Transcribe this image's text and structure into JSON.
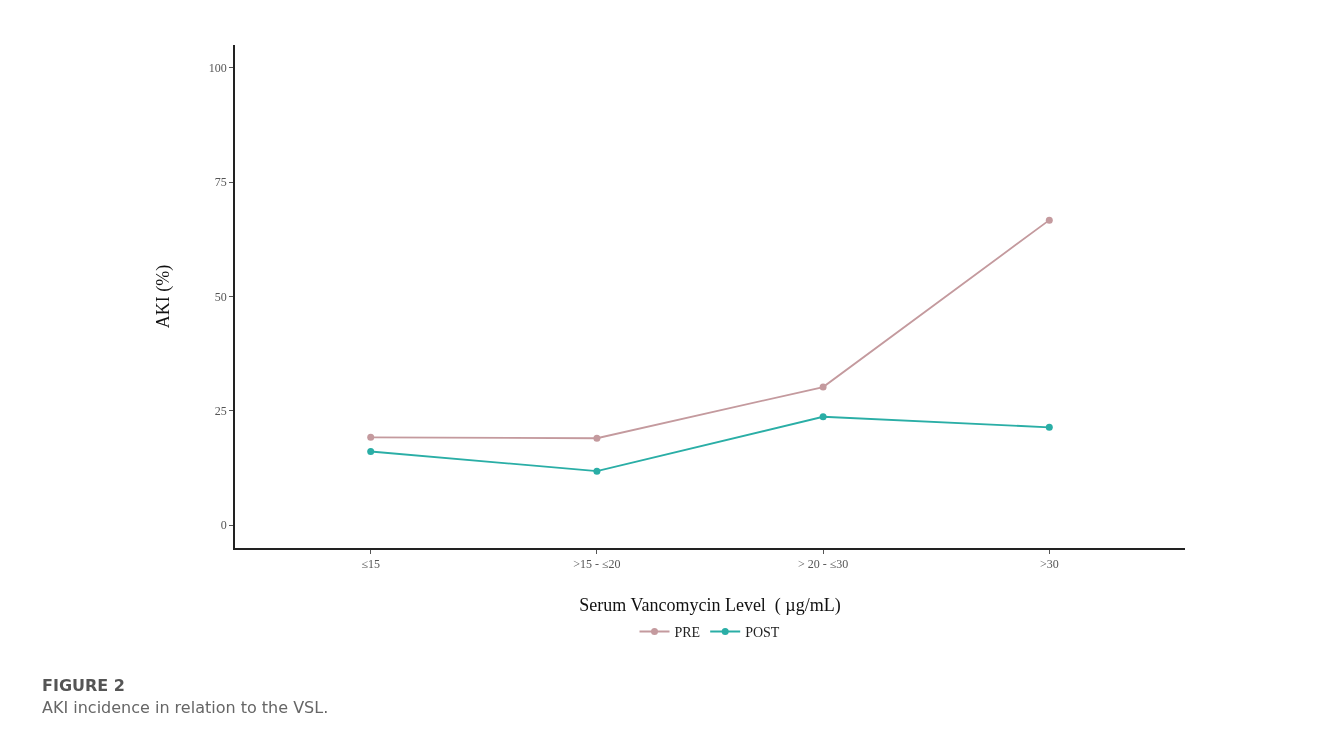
{
  "chart_data": {
    "type": "line",
    "xlabel": "Serum Vancomycin Level  ( µg/mL)",
    "ylabel": "AKI (%)",
    "categories": [
      "≤15",
      ">15 - ≤20",
      "> 20 - ≤30",
      ">30"
    ],
    "series": [
      {
        "name": "PRE",
        "color": "#c49a9e",
        "values": [
          19.2,
          19.0,
          30.2,
          66.7
        ]
      },
      {
        "name": "POST",
        "color": "#2aaea6",
        "values": [
          16.1,
          11.8,
          23.7,
          21.4
        ]
      }
    ],
    "ylim": [
      -5,
      105
    ],
    "yticks": [
      0,
      25,
      50,
      75,
      100
    ],
    "grid": false,
    "legend": "bottom",
    "marker": "circle",
    "line_style": "solid",
    "annotations": [
      "FIGURE 2",
      "AKI incidence in relation to the VSL."
    ]
  }
}
